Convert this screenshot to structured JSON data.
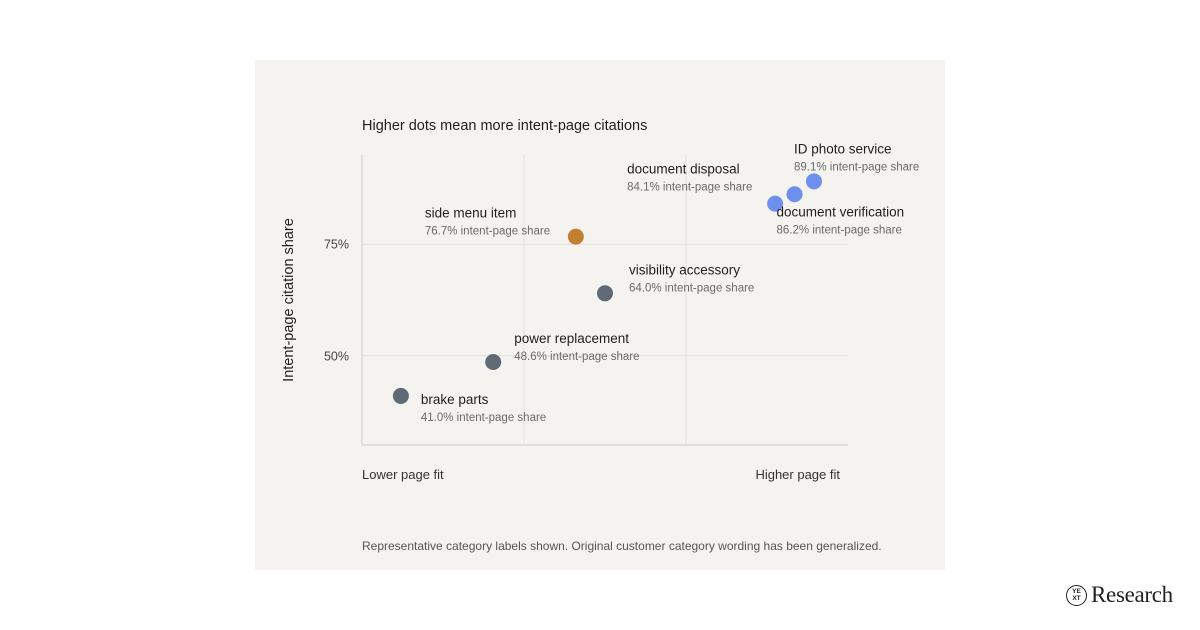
{
  "chart_data": {
    "type": "scatter",
    "title": "Higher dots mean more intent-page citations",
    "ylabel": "Intent-page citation share",
    "x_low_label": "Lower page fit",
    "x_high_label": "Higher page fit",
    "ylim": [
      30,
      95
    ],
    "yticks": [
      {
        "value": 75,
        "label": "75%"
      },
      {
        "value": 50,
        "label": "50%"
      }
    ],
    "grid": true,
    "points": [
      {
        "name": "brake parts",
        "x": 0.08,
        "y": 41.0,
        "detail": "41.0% intent-page share",
        "color": "#5f6a74"
      },
      {
        "name": "power replacement",
        "x": 0.27,
        "y": 48.6,
        "detail": "48.6% intent-page share",
        "color": "#5f6a74"
      },
      {
        "name": "side menu item",
        "x": 0.44,
        "y": 76.7,
        "detail": "76.7% intent-page share",
        "color": "#c27f2f"
      },
      {
        "name": "visibility accessory",
        "x": 0.5,
        "y": 64.0,
        "detail": "64.0% intent-page share",
        "color": "#5f6a74"
      },
      {
        "name": "document disposal",
        "x": 0.85,
        "y": 84.1,
        "detail": "84.1% intent-page share",
        "color": "#6f8fec"
      },
      {
        "name": "document verification",
        "x": 0.89,
        "y": 86.2,
        "detail": "86.2% intent-page share",
        "color": "#6f8fec"
      },
      {
        "name": "ID photo service",
        "x": 0.93,
        "y": 89.1,
        "detail": "89.1% intent-page share",
        "color": "#6f8fec"
      }
    ]
  },
  "footnote": "Representative category labels shown. Original customer category wording has been generalized.",
  "brand": {
    "logo_text_top": "YE",
    "logo_text_bottom": "XT",
    "name": "Research"
  }
}
